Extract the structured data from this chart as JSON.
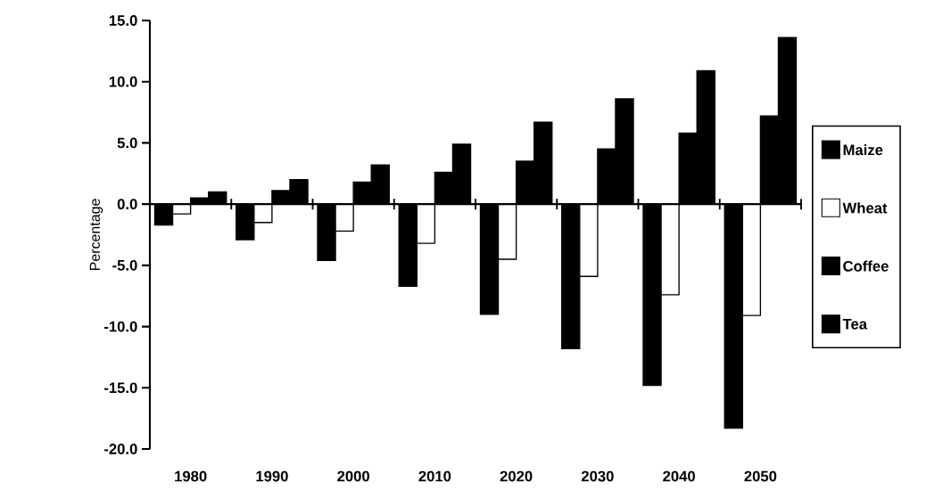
{
  "chart_data": {
    "type": "bar",
    "ylabel": "Percentage",
    "categories": [
      "1980",
      "1990",
      "2000",
      "2010",
      "2020",
      "2030",
      "2040",
      "2050"
    ],
    "series": [
      {
        "name": "Maize",
        "color": "#000000",
        "values": [
          -1.7,
          -2.9,
          -4.6,
          -6.7,
          -9.0,
          -11.8,
          -14.8,
          -18.3
        ]
      },
      {
        "name": "Wheat",
        "color": "#ffffff",
        "values": [
          -0.8,
          -1.5,
          -2.2,
          -3.2,
          -4.5,
          -5.9,
          -7.4,
          -9.1
        ]
      },
      {
        "name": "Coffee",
        "color": "#000000",
        "values": [
          0.5,
          1.1,
          1.8,
          2.6,
          3.5,
          4.5,
          5.8,
          7.2
        ]
      },
      {
        "name": "Tea",
        "color": "#000000",
        "values": [
          1.0,
          2.0,
          3.2,
          4.9,
          6.7,
          8.6,
          10.9,
          13.6
        ]
      }
    ],
    "ylim": [
      -20,
      15
    ],
    "yticks": [
      {
        "value": -20,
        "label": "-20.0"
      },
      {
        "value": -15,
        "label": "-15.0"
      },
      {
        "value": -10,
        "label": "-10.0"
      },
      {
        "value": -5,
        "label": "-5.0"
      },
      {
        "value": 0,
        "label": "0.0"
      },
      {
        "value": 5,
        "label": "5.0"
      },
      {
        "value": 10,
        "label": "10.0"
      },
      {
        "value": 15,
        "label": "15.0"
      }
    ],
    "legend": "right"
  }
}
